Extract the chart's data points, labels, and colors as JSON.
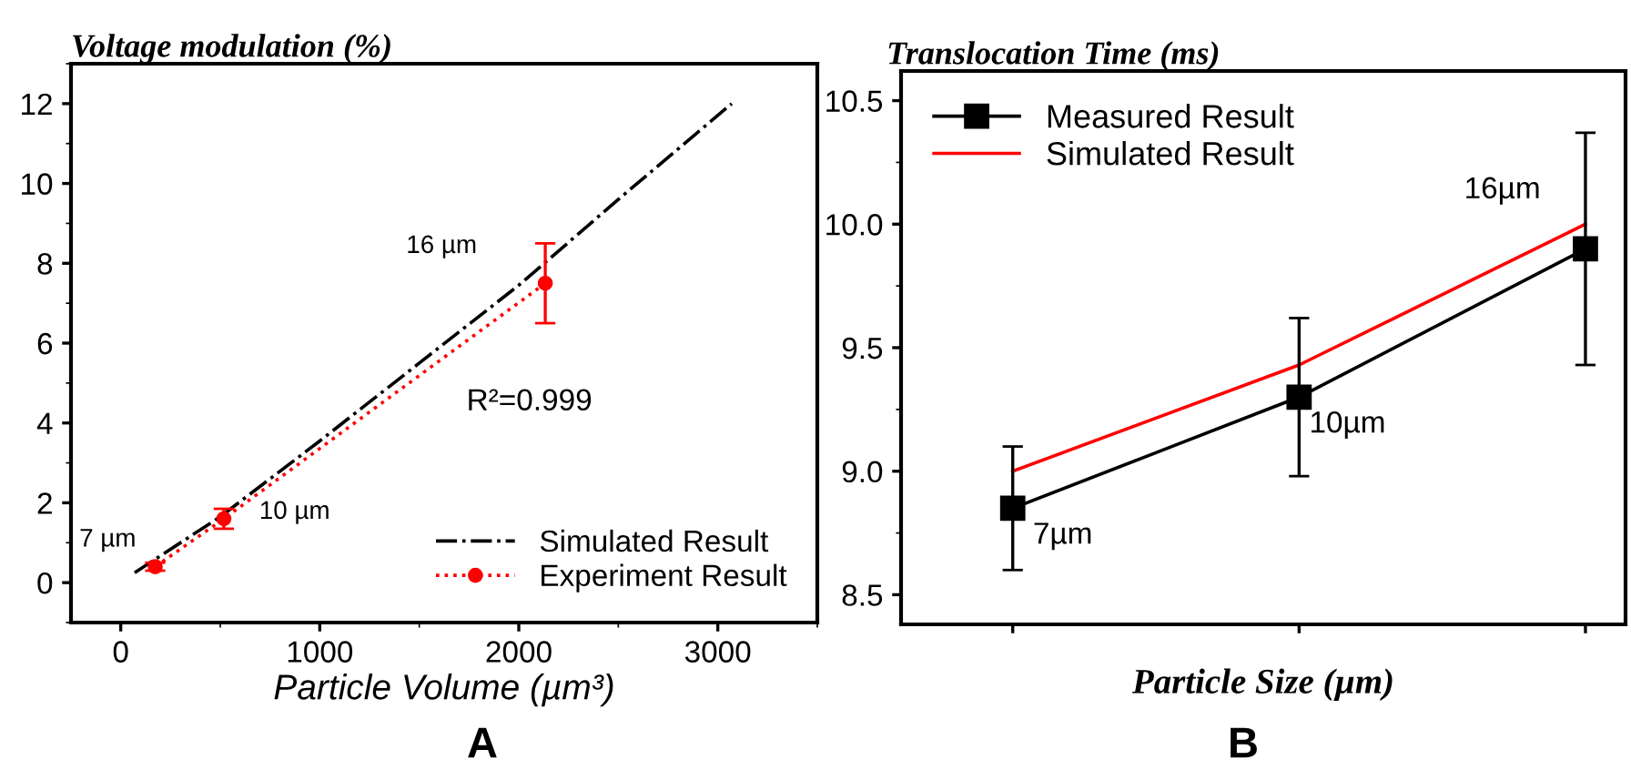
{
  "chart_data": [
    {
      "type": "line",
      "ylabel": "Voltage modulation (%)",
      "xlabel": "Particle Volume (µm³)",
      "series": [
        {
          "name": "Simulated Result",
          "color": "#000000",
          "line_style": "dashdot",
          "marker": "none",
          "x": [
            70,
            500,
            1000,
            1500,
            2000,
            2500,
            3070
          ],
          "values": [
            0.25,
            1.65,
            3.55,
            5.5,
            7.45,
            9.6,
            12
          ]
        },
        {
          "name": "Experiment Result",
          "color": "#ff0000",
          "line_style": "dotted",
          "marker": "circle",
          "x": [
            173,
            518,
            2133
          ],
          "values": [
            0.4,
            1.6,
            7.5
          ],
          "errors": [
            0.1,
            0.25,
            1
          ]
        }
      ],
      "xlim": [
        -250,
        3500
      ],
      "xticks": [
        0,
        1000,
        2000,
        3000
      ],
      "ylim": [
        -1,
        13
      ],
      "yticks": [
        0,
        2,
        4,
        6,
        8,
        10,
        12
      ],
      "legend": "bottom right",
      "grid": false,
      "annotations": [
        {
          "text": "7 µm",
          "x": 173,
          "y": 0.4
        },
        {
          "text": "10 µm",
          "x": 518,
          "y": 1.6
        },
        {
          "text": "16 µm",
          "x": 2133,
          "y": 7.5
        },
        "R²=0.999",
        "A"
      ]
    },
    {
      "type": "line",
      "ylabel": "Translocation Time (ms)",
      "xlabel": "Particle Size (µm)",
      "categories": [
        null,
        null,
        null
      ],
      "series": [
        {
          "name": "Measured Result",
          "color": "#000000",
          "line_style": "solid",
          "marker": "square",
          "values": [
            8.85,
            9.3,
            9.9
          ],
          "errors": [
            0.25,
            0.32,
            0.47
          ]
        },
        {
          "name": "Simulated Result",
          "color": "#ff0000",
          "line_style": "solid",
          "marker": "none",
          "values": [
            9.0,
            9.43,
            10.0
          ]
        }
      ],
      "ylim": [
        8.38,
        10.62
      ],
      "yticks": [
        8.5,
        {
          "value": 9,
          "label": "9.0"
        },
        9.5,
        {
          "value": 10,
          "label": "10.0"
        },
        10.5
      ],
      "tick_labels": "y",
      "legend": "top left",
      "grid": false,
      "annotations": [
        "7µm",
        "10µm",
        "16µm",
        "B"
      ]
    }
  ]
}
